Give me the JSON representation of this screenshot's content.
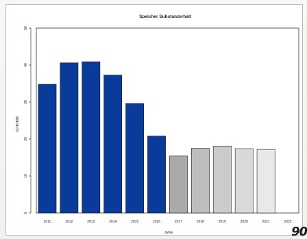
{
  "chart_data": {
    "type": "bar",
    "title": "Speicher Substanzerhalt",
    "xlabel": "Jahre",
    "ylabel": "kCHF/MW",
    "ylim": [
      0,
      50
    ],
    "yticks": [
      "0",
      "10",
      "20",
      "30",
      "40",
      "50"
    ],
    "grid": false,
    "legend": "none",
    "categories": [
      "2011",
      "2012",
      "2013",
      "2014",
      "2015",
      "2016",
      "2017",
      "2018",
      "2019",
      "2020",
      "2021",
      "2022"
    ],
    "values": [
      34.8,
      40.6,
      40.9,
      37.3,
      29.6,
      20.8,
      15.4,
      17.5,
      18.1,
      17.4,
      17.2,
      0
    ],
    "bar_colors": [
      "#0a3a9a",
      "#0a3a9a",
      "#0a3a9a",
      "#0a3a9a",
      "#0a3a9a",
      "#0a3a9a",
      "#aaaaaa",
      "#bdbdbd",
      "#cbcbcb",
      "#d9d9d9",
      "#e9e9e9",
      "#f7f7f7"
    ]
  },
  "stamp_text": "90"
}
